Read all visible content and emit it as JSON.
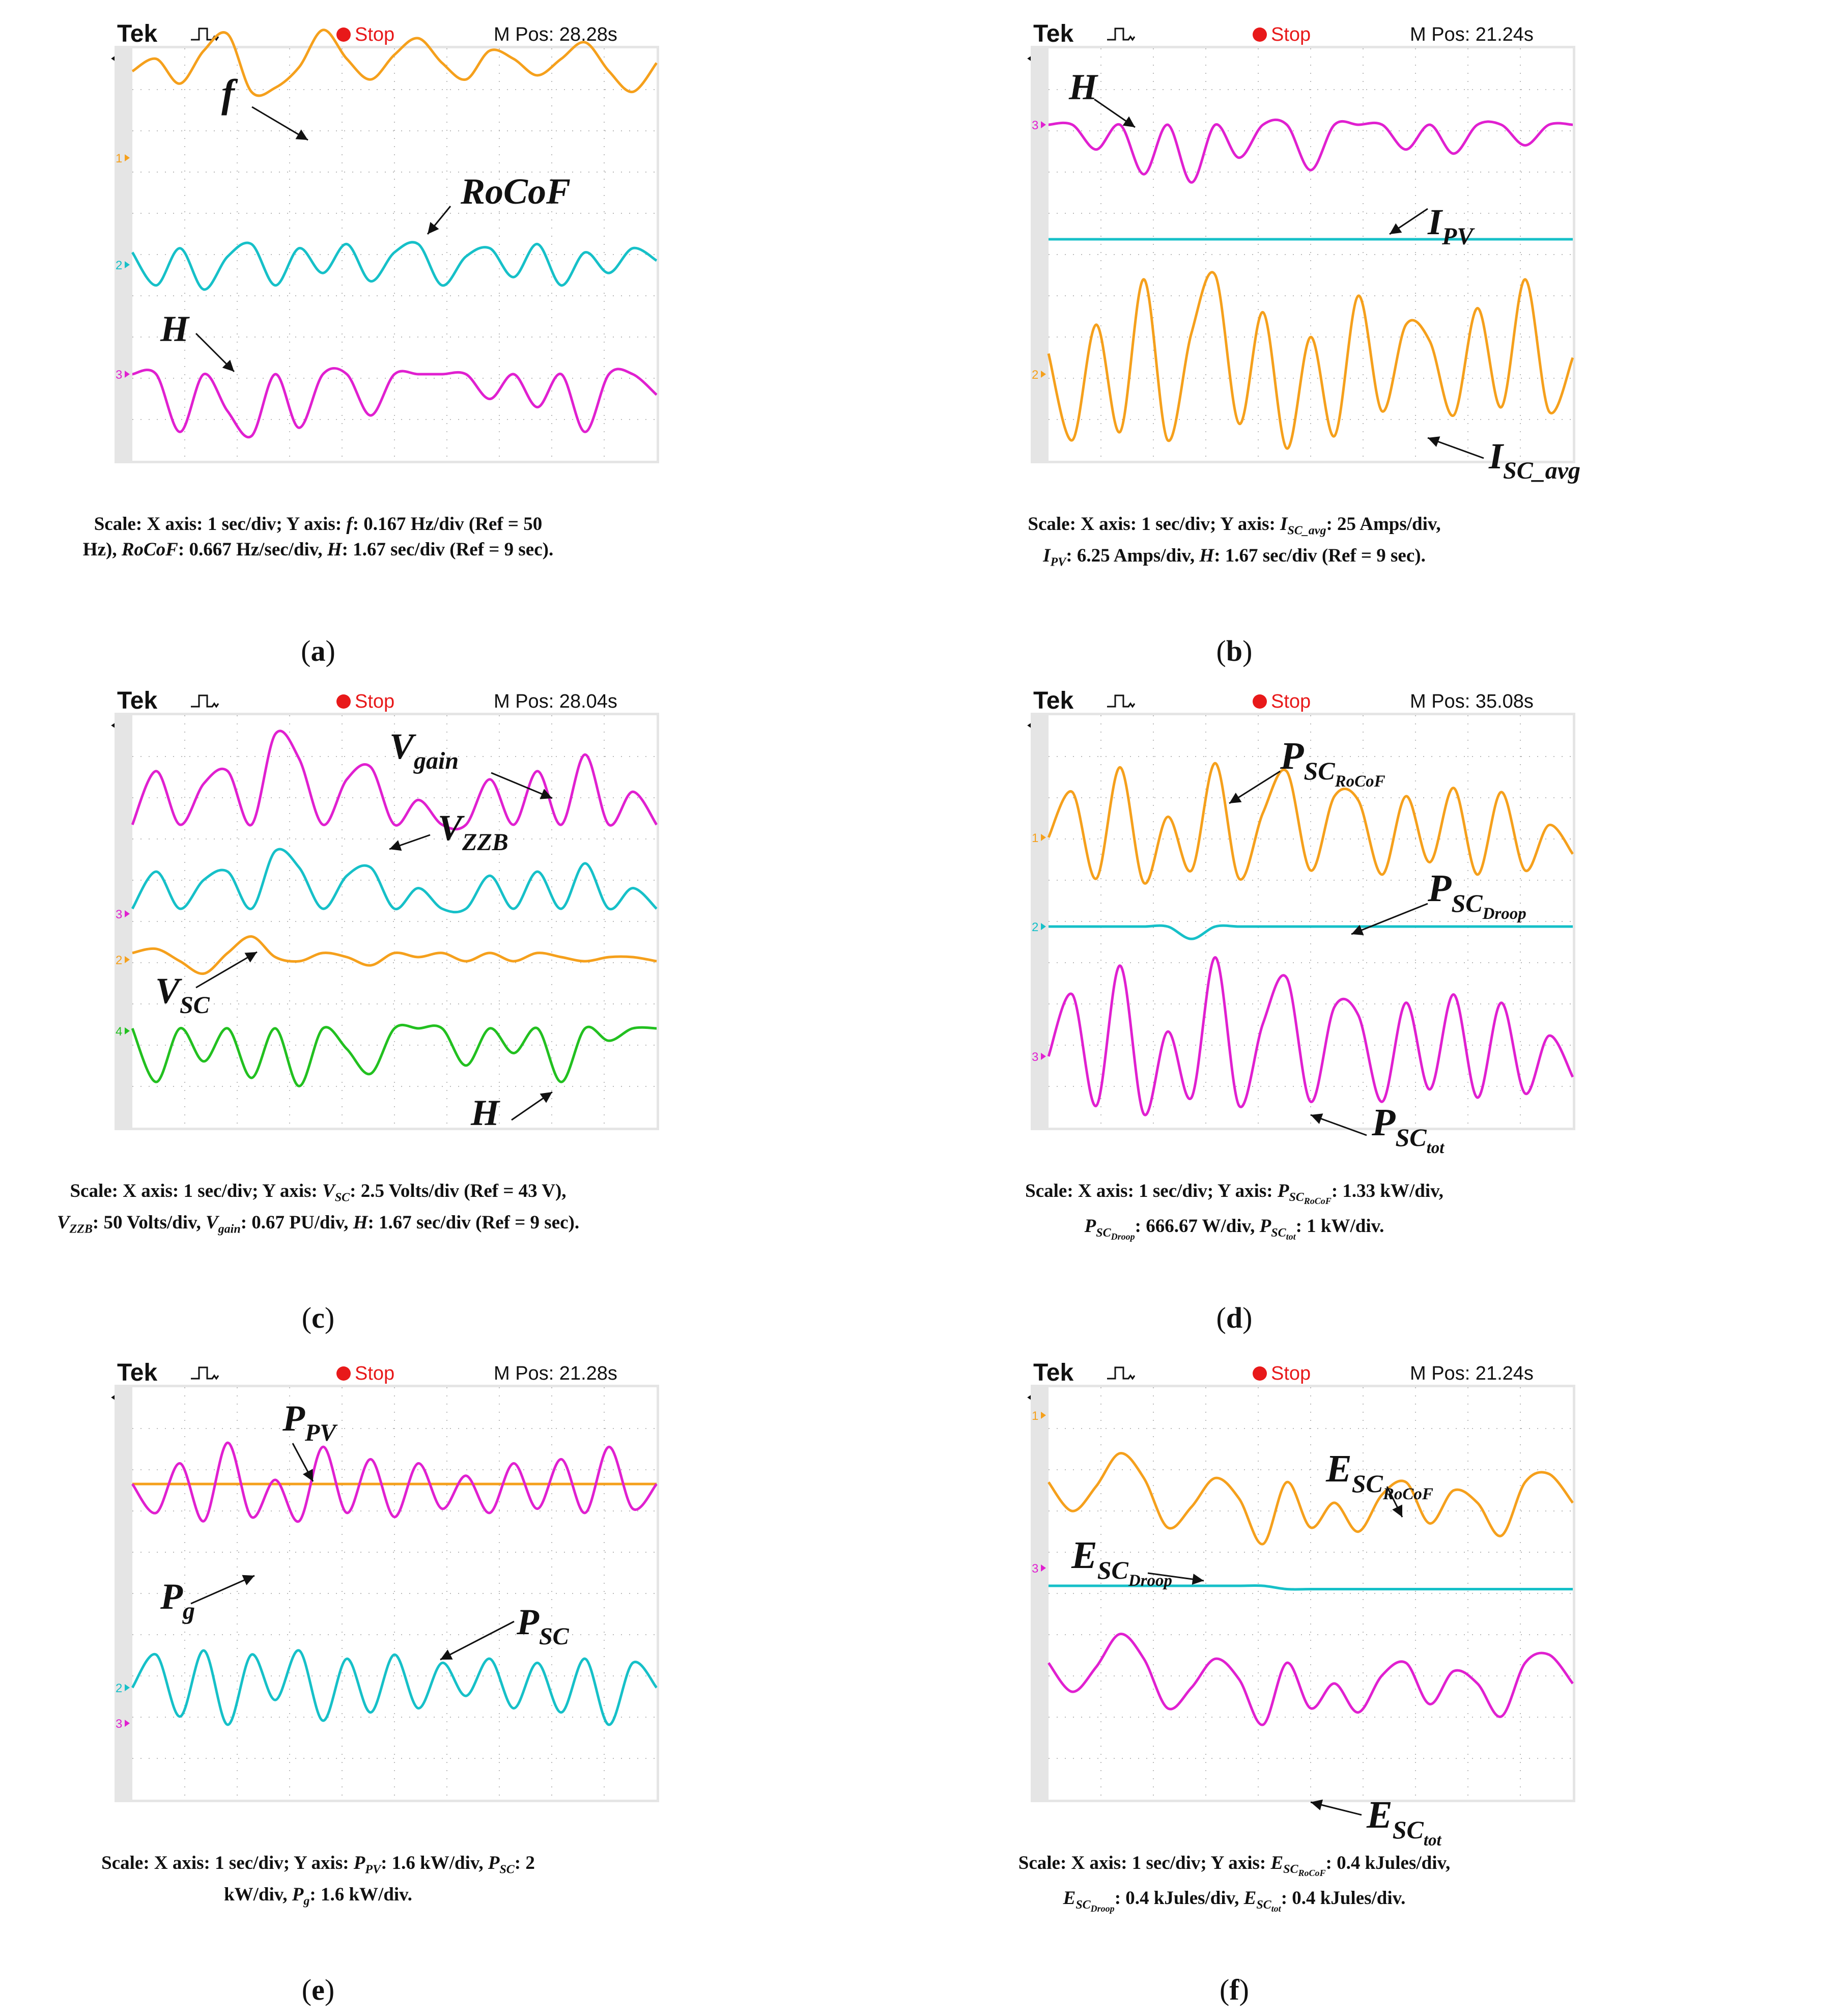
{
  "panels": [
    {
      "id": "a",
      "tek": "Tek",
      "stop": "Stop",
      "mpos": "M Pos: 28.28s",
      "label": "a",
      "caption_lines": [
        [
          {
            "t": "Scale: X axis: 1 sec/div; Y axis: "
          },
          {
            "t": "f",
            "i": true
          },
          {
            "t": ": 0.167 Hz/div (Ref = 50"
          }
        ],
        [
          {
            "t": "Hz), "
          },
          {
            "t": "RoCoF",
            "i": true
          },
          {
            "t": ": 0.667 Hz/sec/div, "
          },
          {
            "t": "H",
            "i": true
          },
          {
            "t": ": 1.67 sec/div (Ref = 9 sec)."
          }
        ]
      ],
      "labels": [
        {
          "base": "f",
          "sub": ""
        },
        {
          "base": "RoCoF",
          "sub": ""
        },
        {
          "base": "H",
          "sub": ""
        }
      ],
      "channel_markers": [
        "1",
        "2",
        "3"
      ]
    },
    {
      "id": "b",
      "tek": "Tek",
      "stop": "Stop",
      "mpos": "M Pos: 21.24s",
      "label": "b",
      "caption_lines": [
        [
          {
            "t": "Scale: X axis: 1 sec/div; Y axis: "
          },
          {
            "t": "I",
            "i": true
          },
          {
            "t": "SC_avg",
            "sub": true
          },
          {
            "t": ": 25 Amps/div,"
          }
        ],
        [
          {
            "t": "I",
            "i": true
          },
          {
            "t": "PV",
            "sub": true
          },
          {
            "t": ": 6.25 Amps/div, "
          },
          {
            "t": "H",
            "i": true
          },
          {
            "t": ": 1.67 sec/div (Ref = 9 sec)."
          }
        ]
      ],
      "labels": [
        {
          "base": "H",
          "sub": ""
        },
        {
          "base": "I",
          "sub": "PV"
        },
        {
          "base": "I",
          "sub": "SC_avg"
        }
      ],
      "channel_markers": [
        "3",
        "2"
      ]
    },
    {
      "id": "c",
      "tek": "Tek",
      "stop": "Stop",
      "mpos": "M Pos: 28.04s",
      "label": "c",
      "caption_lines": [
        [
          {
            "t": "Scale: X axis: 1 sec/div; Y axis: "
          },
          {
            "t": "V",
            "i": true
          },
          {
            "t": "SC",
            "sub": true
          },
          {
            "t": ": 2.5 Volts/div (Ref = 43 V),"
          }
        ],
        [
          {
            "t": "V",
            "i": true
          },
          {
            "t": "ZZB",
            "sub": true
          },
          {
            "t": ": 50 Volts/div, "
          },
          {
            "t": "V",
            "i": true
          },
          {
            "t": "gain",
            "sub": true
          },
          {
            "t": ": 0.67 PU/div, "
          },
          {
            "t": "H",
            "i": true
          },
          {
            "t": ": 1.67 sec/div (Ref = 9 sec)."
          }
        ]
      ],
      "labels": [
        {
          "base": "V",
          "sub": "gain"
        },
        {
          "base": "V",
          "sub": "ZZB"
        },
        {
          "base": "V",
          "sub": "SC"
        },
        {
          "base": "H",
          "sub": ""
        }
      ],
      "channel_markers": [
        "3",
        "2",
        "4"
      ]
    },
    {
      "id": "d",
      "tek": "Tek",
      "stop": "Stop",
      "mpos": "M Pos: 35.08s",
      "label": "d",
      "caption_lines": [
        [
          {
            "t": "Scale: X axis: 1 sec/div; Y axis: "
          },
          {
            "t": "P",
            "i": true
          },
          {
            "t": "SC",
            "sub": true,
            "subsub": "RoCoF"
          },
          {
            "t": ": 1.33 kW/div,"
          }
        ],
        [
          {
            "t": "P",
            "i": true
          },
          {
            "t": "SC",
            "sub": true,
            "subsub": "Droop"
          },
          {
            "t": ": 666.67 W/div, "
          },
          {
            "t": "P",
            "i": true
          },
          {
            "t": "SC",
            "sub": true,
            "subsub": "tot"
          },
          {
            "t": ": 1 kW/div."
          }
        ]
      ],
      "labels": [
        {
          "base": "P",
          "sub": "SC",
          "subsub": "RoCoF"
        },
        {
          "base": "P",
          "sub": "SC",
          "subsub": "Droop"
        },
        {
          "base": "P",
          "sub": "SC",
          "subsub": "tot"
        }
      ],
      "channel_markers": [
        "1",
        "2",
        "3"
      ]
    },
    {
      "id": "e",
      "tek": "Tek",
      "stop": "Stop",
      "mpos": "M Pos: 21.28s",
      "label": "e",
      "caption_lines": [
        [
          {
            "t": "Scale: X axis: 1 sec/div; Y axis: "
          },
          {
            "t": "P",
            "i": true
          },
          {
            "t": "PV",
            "sub": true
          },
          {
            "t": ": 1.6 kW/div, "
          },
          {
            "t": "P",
            "i": true
          },
          {
            "t": "SC",
            "sub": true
          },
          {
            "t": ": 2"
          }
        ],
        [
          {
            "t": "kW/div, "
          },
          {
            "t": "P",
            "i": true
          },
          {
            "t": "g",
            "sub": true
          },
          {
            "t": ": 1.6 kW/div."
          }
        ]
      ],
      "labels": [
        {
          "base": "P",
          "sub": "PV"
        },
        {
          "base": "P",
          "sub": "g"
        },
        {
          "base": "P",
          "sub": "SC"
        }
      ],
      "channel_markers": [
        "2",
        "3"
      ]
    },
    {
      "id": "f",
      "tek": "Tek",
      "stop": "Stop",
      "mpos": "M Pos: 21.24s",
      "label": "f",
      "caption_lines": [
        [
          {
            "t": "Scale: X axis: 1 sec/div; Y axis: "
          },
          {
            "t": "E",
            "i": true
          },
          {
            "t": "SC",
            "sub": true,
            "subsub": "RoCoF"
          },
          {
            "t": ": 0.4 kJules/div,"
          }
        ],
        [
          {
            "t": "E",
            "i": true
          },
          {
            "t": "SC",
            "sub": true,
            "subsub": "Droop"
          },
          {
            "t": ": 0.4 kJules/div, "
          },
          {
            "t": "E",
            "i": true
          },
          {
            "t": "SC",
            "sub": true,
            "subsub": "tot"
          },
          {
            "t": ": 0.4 kJules/div."
          }
        ]
      ],
      "labels": [
        {
          "base": "E",
          "sub": "SC",
          "subsub": "RoCoF"
        },
        {
          "base": "E",
          "sub": "SC",
          "subsub": "Droop"
        },
        {
          "base": "E",
          "sub": "SC",
          "subsub": "tot"
        }
      ],
      "channel_markers": [
        "1",
        "3"
      ]
    }
  ],
  "colors": {
    "orange": "#f5a01c",
    "cyan": "#16c0c8",
    "magenta": "#e020d0",
    "green": "#22c020",
    "grid": "#b8b8b8",
    "screen": "#ffffff",
    "bezel": "#dcdcdc",
    "stop": "#e8191a"
  },
  "chart_data": [
    {
      "type": "line",
      "title": "(a)",
      "xlabel": "Time (1 sec/div)",
      "x_divisions": 10,
      "series": [
        {
          "name": "f",
          "unit": "0.167 Hz/div (Ref = 50 Hz)",
          "values": [
            2.1,
            2.4,
            1.8,
            2.6,
            3.0,
            1.6,
            1.7,
            2.2,
            3.1,
            2.4,
            1.9,
            2.5,
            2.9,
            2.3,
            1.9,
            2.6,
            2.4,
            2.0,
            2.4,
            2.8,
            2.1,
            1.6,
            2.3
          ]
        },
        {
          "name": "RoCoF",
          "unit": "0.667 Hz/sec/div",
          "values": [
            0.3,
            -0.5,
            0.4,
            -0.6,
            0.2,
            0.5,
            -0.5,
            0.4,
            -0.2,
            0.5,
            -0.4,
            0.3,
            0.5,
            -0.5,
            0.2,
            0.4,
            -0.3,
            0.5,
            -0.5,
            0.3,
            -0.2,
            0.4,
            0.1
          ]
        },
        {
          "name": "H",
          "unit": "1.67 sec/div (Ref = 9 sec)",
          "values": [
            0,
            0,
            -1.4,
            0,
            -0.9,
            -1.5,
            0,
            -1.3,
            0,
            0,
            -1.0,
            0,
            0,
            0,
            0,
            -0.6,
            0,
            -0.8,
            0,
            -1.4,
            0,
            0,
            -0.5
          ]
        }
      ]
    },
    {
      "type": "line",
      "title": "(b)",
      "xlabel": "Time (1 sec/div)",
      "x_divisions": 10,
      "series": [
        {
          "name": "H",
          "unit": "1.67 sec/div (Ref = 9 sec)",
          "values": [
            0,
            0,
            -0.6,
            0,
            -1.2,
            0,
            -1.4,
            0,
            -0.8,
            0,
            0,
            -1.1,
            0,
            0,
            0,
            -0.6,
            0,
            -0.7,
            0,
            0,
            -0.5,
            0,
            0
          ]
        },
        {
          "name": "I_PV",
          "unit": "6.25 Amps/div",
          "values": [
            0,
            0,
            0,
            0,
            0,
            0,
            0,
            0,
            0,
            0,
            0,
            0,
            0,
            0,
            0,
            0,
            0,
            0,
            0,
            0,
            0,
            0,
            0
          ]
        },
        {
          "name": "I_SC_avg",
          "unit": "25 Amps/div",
          "values": [
            0.5,
            -1.6,
            1.2,
            -1.4,
            2.3,
            -1.6,
            1.0,
            2.4,
            -1.2,
            1.5,
            -1.8,
            0.9,
            -1.5,
            1.9,
            -0.9,
            1.2,
            0.8,
            -1.0,
            1.6,
            -0.8,
            2.3,
            -0.9,
            0.4
          ]
        }
      ]
    },
    {
      "type": "line",
      "title": "(c)",
      "xlabel": "Time (1 sec/div)",
      "x_divisions": 10,
      "series": [
        {
          "name": "V_gain",
          "unit": "0.67 PU/div",
          "values": [
            0,
            1.3,
            0,
            1.0,
            1.3,
            0,
            2.2,
            1.6,
            0,
            1.1,
            1.4,
            0,
            0.6,
            0,
            0,
            1.1,
            0,
            1.3,
            0,
            1.7,
            0,
            0.8,
            0
          ]
        },
        {
          "name": "V_ZZB",
          "unit": "50 Volts/div",
          "values": [
            0,
            0.9,
            0,
            0.7,
            0.9,
            0,
            1.4,
            1.0,
            0,
            0.8,
            1.0,
            0,
            0.5,
            0,
            0,
            0.8,
            0,
            0.9,
            0,
            1.1,
            0,
            0.5,
            0
          ]
        },
        {
          "name": "V_SC",
          "unit": "2.5 Volts/div (Ref = 43 V)",
          "values": [
            0.1,
            0.2,
            -0.1,
            -0.4,
            0.1,
            0.5,
            0.0,
            -0.1,
            0.1,
            0.0,
            -0.2,
            0.1,
            0.0,
            0.1,
            -0.1,
            0.1,
            -0.1,
            0.1,
            0.0,
            -0.1,
            0.0,
            0.0,
            -0.1
          ]
        },
        {
          "name": "H",
          "unit": "1.67 sec/div (Ref = 9 sec)",
          "values": [
            0,
            -1.3,
            0,
            -0.8,
            0,
            -1.2,
            0,
            -1.4,
            0,
            -0.5,
            -1.1,
            0,
            0,
            0,
            -0.9,
            0,
            -0.6,
            0,
            -1.3,
            0,
            -0.3,
            0,
            0
          ]
        }
      ]
    },
    {
      "type": "line",
      "title": "(d)",
      "xlabel": "Time (1 sec/div)",
      "x_divisions": 10,
      "series": [
        {
          "name": "P_SC_RoCoF",
          "unit": "1.33 kW/div",
          "values": [
            0.0,
            1.1,
            -1.0,
            1.7,
            -1.1,
            0.5,
            -0.8,
            1.8,
            -1.0,
            0.6,
            1.6,
            -0.8,
            1.0,
            0.9,
            -0.9,
            1.0,
            -0.6,
            1.2,
            -0.9,
            1.1,
            -0.8,
            0.3,
            -0.4
          ]
        },
        {
          "name": "P_SC_Droop",
          "unit": "666.67 W/div",
          "values": [
            0,
            0,
            0,
            0,
            0,
            0,
            -0.3,
            0,
            0,
            0,
            0,
            0,
            0,
            0,
            0,
            0,
            0,
            0,
            0,
            0,
            0,
            0,
            0
          ]
        },
        {
          "name": "P_SC_tot",
          "unit": "1 kW/div",
          "values": [
            0.0,
            1.5,
            -1.2,
            2.2,
            -1.4,
            0.6,
            -1.0,
            2.4,
            -1.2,
            0.8,
            1.9,
            -1.1,
            1.2,
            1.0,
            -1.1,
            1.3,
            -0.8,
            1.5,
            -1.0,
            1.3,
            -0.9,
            0.5,
            -0.5
          ]
        }
      ]
    },
    {
      "type": "line",
      "title": "(e)",
      "xlabel": "Time (1 sec/div)",
      "x_divisions": 10,
      "series": [
        {
          "name": "P_PV",
          "unit": "1.6 kW/div",
          "values": [
            0,
            0,
            0,
            0,
            0,
            0,
            0,
            0,
            0,
            0,
            0,
            0,
            0,
            0,
            0,
            0,
            0,
            0,
            0,
            0,
            0,
            0,
            0
          ]
        },
        {
          "name": "P_g",
          "unit": "1.6 kW/div",
          "values": [
            0.0,
            -0.7,
            0.5,
            -0.9,
            1.0,
            -0.8,
            0.1,
            -0.9,
            0.9,
            -0.7,
            0.6,
            -0.8,
            0.5,
            -0.6,
            0.2,
            -0.7,
            0.5,
            -0.6,
            0.6,
            -0.7,
            0.9,
            -0.6,
            0.0
          ]
        },
        {
          "name": "P_SC",
          "unit": "2 kW/div",
          "values": [
            0.0,
            0.8,
            -0.7,
            0.9,
            -0.9,
            0.8,
            -0.3,
            0.9,
            -0.8,
            0.7,
            -0.6,
            0.8,
            -0.5,
            0.6,
            -0.2,
            0.7,
            -0.5,
            0.6,
            -0.6,
            0.7,
            -0.9,
            0.6,
            0.0
          ]
        }
      ]
    },
    {
      "type": "line",
      "title": "(f)",
      "xlabel": "Time (1 sec/div)",
      "x_divisions": 10,
      "series": [
        {
          "name": "E_SC_RoCoF",
          "unit": "0.4 kJules/div",
          "values": [
            0.6,
            -0.1,
            0.5,
            1.3,
            0.7,
            -0.5,
            0.0,
            0.7,
            0.2,
            -0.9,
            0.6,
            -0.5,
            0.1,
            -0.6,
            0.3,
            0.6,
            -0.4,
            0.4,
            0.1,
            -0.7,
            0.6,
            0.8,
            0.1
          ]
        },
        {
          "name": "E_SC_Droop",
          "unit": "0.4 kJules/div",
          "values": [
            0,
            0,
            0,
            0,
            0,
            0,
            0,
            0,
            0,
            0,
            -0.08,
            -0.08,
            -0.08,
            -0.08,
            -0.08,
            -0.08,
            -0.08,
            -0.08,
            -0.08,
            -0.08,
            -0.08,
            -0.08,
            -0.08
          ]
        },
        {
          "name": "E_SC_tot",
          "unit": "0.4 kJules/div",
          "values": [
            0.6,
            -0.1,
            0.5,
            1.3,
            0.7,
            -0.5,
            0.0,
            0.7,
            0.2,
            -0.9,
            0.6,
            -0.5,
            0.1,
            -0.6,
            0.3,
            0.6,
            -0.4,
            0.4,
            0.1,
            -0.7,
            0.6,
            0.8,
            0.1
          ]
        }
      ]
    }
  ]
}
